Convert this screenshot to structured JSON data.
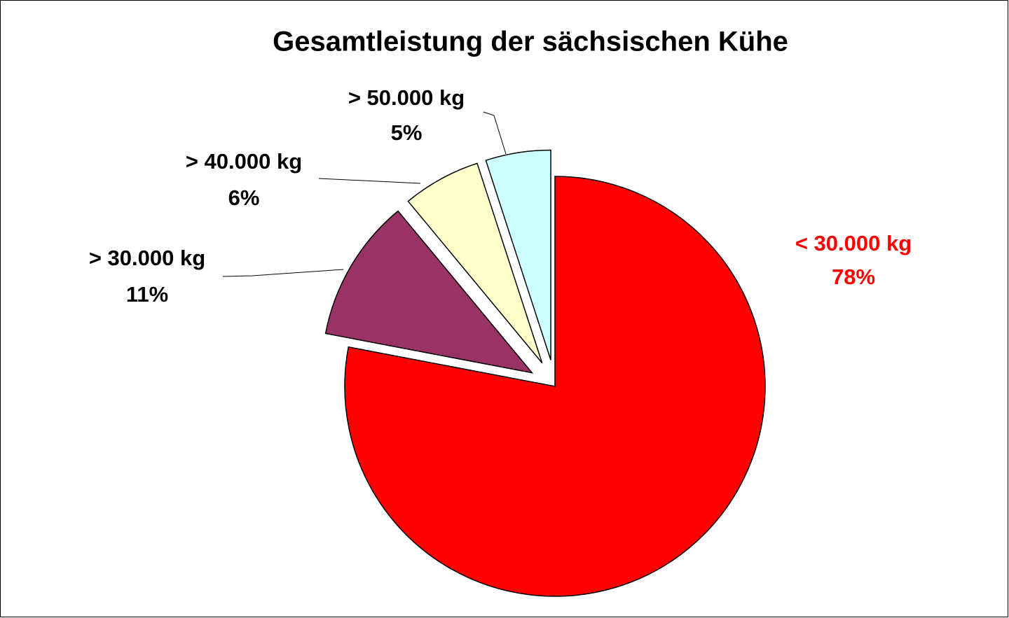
{
  "chart_data": {
    "type": "pie",
    "title": "Gesamtleistung der sächsischen Kühe",
    "categories": [
      "< 30.000 kg",
      "> 30.000 kg",
      "> 40.000 kg",
      "> 50.000 kg"
    ],
    "values": [
      78,
      11,
      6,
      5
    ],
    "value_labels": [
      "78%",
      "11%",
      "6%",
      "5%"
    ],
    "colors": [
      "#ff0000",
      "#993366",
      "#ffffcc",
      "#ccffff"
    ],
    "label_colors": [
      "#ff0000",
      "#000000",
      "#000000",
      "#000000"
    ]
  }
}
